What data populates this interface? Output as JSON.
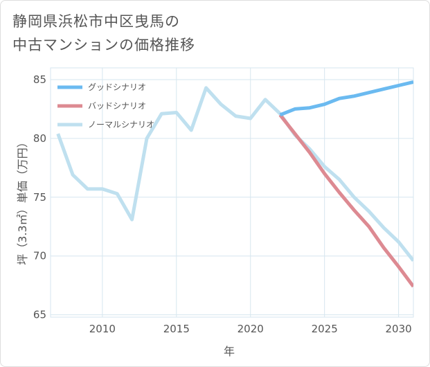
{
  "title": {
    "line1": "静岡県浜松市中区曳馬の",
    "line2": "中古マンションの価格推移"
  },
  "chart_data": {
    "type": "line",
    "xlabel": "年",
    "ylabel": "坪（3.3㎡）単価（万円）",
    "xlim": [
      2006.5,
      2031
    ],
    "ylim": [
      64.8,
      86
    ],
    "xticks": [
      2010,
      2015,
      2020,
      2025,
      2030
    ],
    "yticks": [
      65,
      70,
      75,
      80,
      85
    ],
    "legend_position": "top-left",
    "series": [
      {
        "name": "グッドシナリオ",
        "color": "#6bbaf0",
        "x": [
          2022,
          2023,
          2024,
          2025,
          2026,
          2027,
          2028,
          2029,
          2030,
          2031
        ],
        "values": [
          82.0,
          82.5,
          82.6,
          82.9,
          83.4,
          83.6,
          83.9,
          84.2,
          84.5,
          84.8
        ]
      },
      {
        "name": "バッドシナリオ",
        "color": "#dd8a92",
        "x": [
          2022,
          2023,
          2024,
          2025,
          2026,
          2027,
          2028,
          2029,
          2030,
          2031
        ],
        "values": [
          82.0,
          80.4,
          78.8,
          77.0,
          75.4,
          73.9,
          72.5,
          70.7,
          69.1,
          67.4
        ]
      },
      {
        "name": "ノーマルシナリオ",
        "color": "#bfe0ef",
        "x": [
          2007,
          2008,
          2009,
          2010,
          2011,
          2012,
          2013,
          2014,
          2015,
          2016,
          2017,
          2018,
          2019,
          2020,
          2021,
          2022,
          2023,
          2024,
          2025,
          2026,
          2027,
          2028,
          2029,
          2030,
          2031
        ],
        "values": [
          80.4,
          76.9,
          75.7,
          75.7,
          75.3,
          73.1,
          80.0,
          82.1,
          82.2,
          80.7,
          84.3,
          82.9,
          81.9,
          81.7,
          83.3,
          82.1,
          80.3,
          79.1,
          77.6,
          76.5,
          75.0,
          73.8,
          72.4,
          71.2,
          69.6
        ]
      }
    ]
  }
}
